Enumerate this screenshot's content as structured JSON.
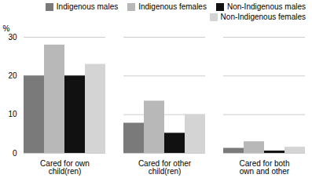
{
  "chart_data": {
    "type": "bar",
    "categories": [
      "Cared for own child(ren)",
      "Cared for other child(ren)",
      "Cared for both own and other"
    ],
    "series": [
      {
        "name": "Indigenous males",
        "color": "#7a7a7a",
        "values": [
          20.0,
          7.8,
          1.3
        ]
      },
      {
        "name": "Indigenous females",
        "color": "#b8b8b8",
        "values": [
          28.0,
          13.5,
          3.0
        ]
      },
      {
        "name": "Non-Indigenous males",
        "color": "#111111",
        "values": [
          20.0,
          5.2,
          0.6
        ]
      },
      {
        "name": "Non-Indigenous females",
        "color": "#d4d4d4",
        "values": [
          23.0,
          10.0,
          1.6
        ]
      }
    ],
    "ylabel": "%",
    "ylim": [
      0,
      30
    ],
    "yticks": [
      0,
      10,
      20,
      30
    ],
    "grid": true,
    "legend": "upper right"
  }
}
